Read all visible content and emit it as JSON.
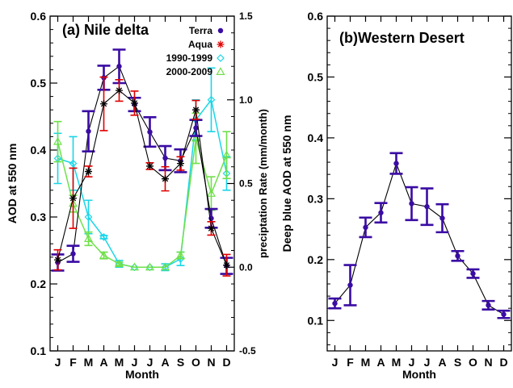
{
  "chart_data": [
    {
      "type": "line",
      "title": "(a) Nile delta",
      "xlabel": "Month",
      "ylabel": "AOD at 550 nm",
      "y2label": "preciptation Rate (mm/month)",
      "categories": [
        "J",
        "F",
        "M",
        "A",
        "M",
        "J",
        "J",
        "A",
        "S",
        "O",
        "N",
        "D"
      ],
      "ylim": [
        0.1,
        0.6
      ],
      "yticks": [
        "0.1",
        "0.2",
        "0.3",
        "0.4",
        "0.5",
        "0.6"
      ],
      "y2lim": [
        -0.5,
        1.5
      ],
      "y2ticks": [
        "-0.5",
        "0.0",
        "0.5",
        "1.0",
        "1.5"
      ],
      "legend_position": "top-right",
      "grid": false,
      "series": [
        {
          "name": "Terra",
          "axis": "left",
          "color": "#3a0ca3",
          "marker": "dot",
          "values": [
            0.232,
            0.245,
            0.428,
            0.508,
            0.525,
            0.468,
            0.427,
            0.388,
            0.384,
            0.433,
            0.298,
            0.227
          ],
          "errors": [
            0.012,
            0.012,
            0.03,
            0.018,
            0.025,
            0.01,
            0.022,
            0.018,
            0.017,
            0.012,
            0.014,
            0.012
          ]
        },
        {
          "name": "Aqua",
          "axis": "left",
          "color": "#e00000",
          "marker": "asterisk",
          "values": [
            0.236,
            0.328,
            0.368,
            0.469,
            0.489,
            0.47,
            0.376,
            0.357,
            0.38,
            0.46,
            0.283,
            0.228
          ],
          "errors": [
            0.015,
            0.045,
            0.008,
            0.04,
            0.016,
            0.018,
            0.005,
            0.018,
            0.01,
            0.014,
            0.01,
            0.016
          ]
        },
        {
          "name": "1990-1999",
          "axis": "right",
          "color": "#1ad6e8",
          "marker": "diamond",
          "values": [
            0.65,
            0.62,
            0.3,
            0.18,
            0.02,
            0.0,
            0.0,
            0.0,
            0.05,
            0.88,
            1.0,
            0.56
          ],
          "errors": [
            0.15,
            0.16,
            0.1,
            0.01,
            0.02,
            0.0,
            0.0,
            0.02,
            0.04,
            0.12,
            0.19,
            0.1
          ]
        },
        {
          "name": "2000-2009",
          "axis": "right",
          "color": "#6fe04a",
          "marker": "triangle",
          "values": [
            0.75,
            0.38,
            0.17,
            0.07,
            0.02,
            0.0,
            0.0,
            0.0,
            0.07,
            0.77,
            0.44,
            0.67
          ],
          "errors": [
            0.12,
            0.05,
            0.04,
            0.02,
            0.01,
            0.0,
            0.0,
            0.0,
            0.02,
            0.15,
            0.1,
            0.14
          ]
        }
      ]
    },
    {
      "type": "line",
      "title": "(b)Western Desert",
      "xlabel": "Month",
      "ylabel": "Deep blue AOD at 550 nm",
      "categories": [
        "J",
        "F",
        "M",
        "A",
        "M",
        "J",
        "J",
        "A",
        "S",
        "O",
        "N",
        "D"
      ],
      "ylim": [
        0.05,
        0.6
      ],
      "yticks": [
        "0.1",
        "0.2",
        "0.3",
        "0.4",
        "0.5",
        "0.6"
      ],
      "grid": false,
      "series": [
        {
          "axis": "left",
          "color": "#3a0ca3",
          "marker": "dot",
          "values": [
            0.128,
            0.158,
            0.253,
            0.277,
            0.358,
            0.292,
            0.287,
            0.268,
            0.206,
            0.177,
            0.125,
            0.11
          ],
          "errors": [
            0.008,
            0.033,
            0.016,
            0.016,
            0.017,
            0.027,
            0.03,
            0.023,
            0.008,
            0.007,
            0.007,
            0.006
          ]
        }
      ]
    }
  ]
}
